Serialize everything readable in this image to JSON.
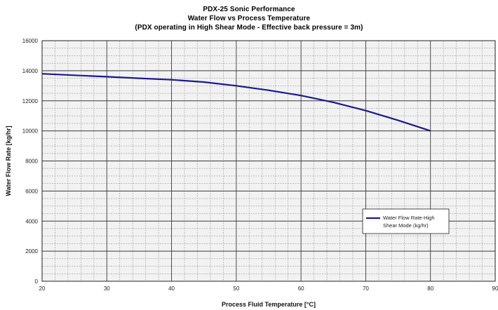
{
  "chart_data": {
    "type": "line",
    "title": "PDX-25 Sonic Performance",
    "subtitle": "Water Flow vs Process Temperature",
    "subtitle2": "(PDX operating in High Shear Mode - Effective back pressure = 3m)",
    "xlabel": "Process Fluid Temperature [°C]",
    "ylabel": "Water Flow Rate [kg/hr]",
    "xlim": [
      20,
      90
    ],
    "ylim": [
      0,
      16000
    ],
    "x_ticks": [
      20,
      30,
      40,
      50,
      60,
      70,
      80,
      90
    ],
    "y_ticks": [
      0,
      2000,
      4000,
      6000,
      8000,
      10000,
      12000,
      14000,
      16000
    ],
    "grid": true,
    "legend_position": "right",
    "series": [
      {
        "name": "Water Flow Rate-High Shear Mode (kg/hr)",
        "color": "#1a1a8c",
        "x": [
          20,
          25,
          30,
          35,
          40,
          45,
          50,
          55,
          60,
          65,
          70,
          75,
          80
        ],
        "y": [
          13800,
          13700,
          13600,
          13500,
          13400,
          13250,
          13000,
          12700,
          12350,
          11900,
          11350,
          10700,
          10000
        ]
      }
    ]
  }
}
